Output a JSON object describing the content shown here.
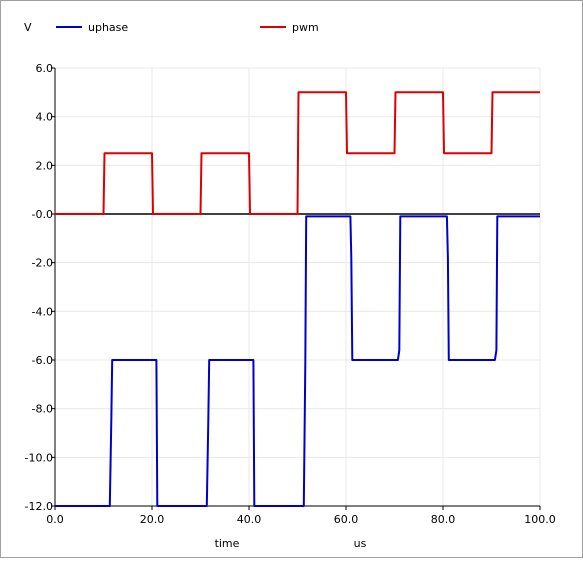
{
  "chart_data": {
    "type": "line",
    "ylabel": "V",
    "xlabel": "time",
    "xunit": "us",
    "xlim": [
      0,
      100
    ],
    "ylim": [
      -12,
      6
    ],
    "x_ticks": [
      0,
      20,
      40,
      60,
      80,
      100
    ],
    "x_tick_labels": [
      "0.0",
      "20.0",
      "40.0",
      "60.0",
      "80.0",
      "100.0"
    ],
    "y_ticks": [
      6,
      4,
      2,
      0,
      -2,
      -4,
      -6,
      -8,
      -10,
      -12
    ],
    "y_tick_labels": [
      "6.0",
      "4.0",
      "2.0",
      "-0.0",
      "-2.0",
      "-4.0",
      "-6.0",
      "-8.0",
      "-10.0",
      "-12.0"
    ],
    "grid": true,
    "legend_position": "top",
    "series": [
      {
        "name": "uphase",
        "color": "#0000cc",
        "x": [
          0,
          11.3,
          11.6,
          11.8,
          20.9,
          21.1,
          31.3,
          31.6,
          31.8,
          40.9,
          41.1,
          51.3,
          51.6,
          51.8,
          60.9,
          61.1,
          61.3,
          70.7,
          71.0,
          71.2,
          80.8,
          81.0,
          81.2,
          90.7,
          91.0,
          91.2,
          100
        ],
        "y": [
          -12,
          -12,
          -8.5,
          -6,
          -6,
          -12,
          -12,
          -8.5,
          -6,
          -6,
          -12,
          -12,
          -6.2,
          -0.1,
          -0.1,
          -1.8,
          -6.0,
          -6.0,
          -5.6,
          -0.1,
          -0.1,
          -1.8,
          -6.0,
          -6.0,
          -5.6,
          -0.1,
          -0.1
        ]
      },
      {
        "name": "pwm",
        "color": "#dd0000",
        "x": [
          0,
          10,
          10.2,
          20,
          20.2,
          30,
          30.2,
          40,
          40.2,
          50,
          50.2,
          60,
          60.2,
          70,
          70.2,
          80,
          80.2,
          90,
          90.2,
          100
        ],
        "y": [
          0,
          0,
          2.5,
          2.5,
          0,
          0,
          2.5,
          2.5,
          0,
          0,
          5,
          5,
          2.5,
          2.5,
          5,
          5,
          2.5,
          2.5,
          5,
          5
        ]
      },
      {
        "name": "",
        "color": "#000000",
        "x": [
          0,
          100
        ],
        "y": [
          0,
          0
        ]
      }
    ],
    "colors": {
      "grid": "#e8e8e8",
      "axis": "#000000"
    }
  }
}
